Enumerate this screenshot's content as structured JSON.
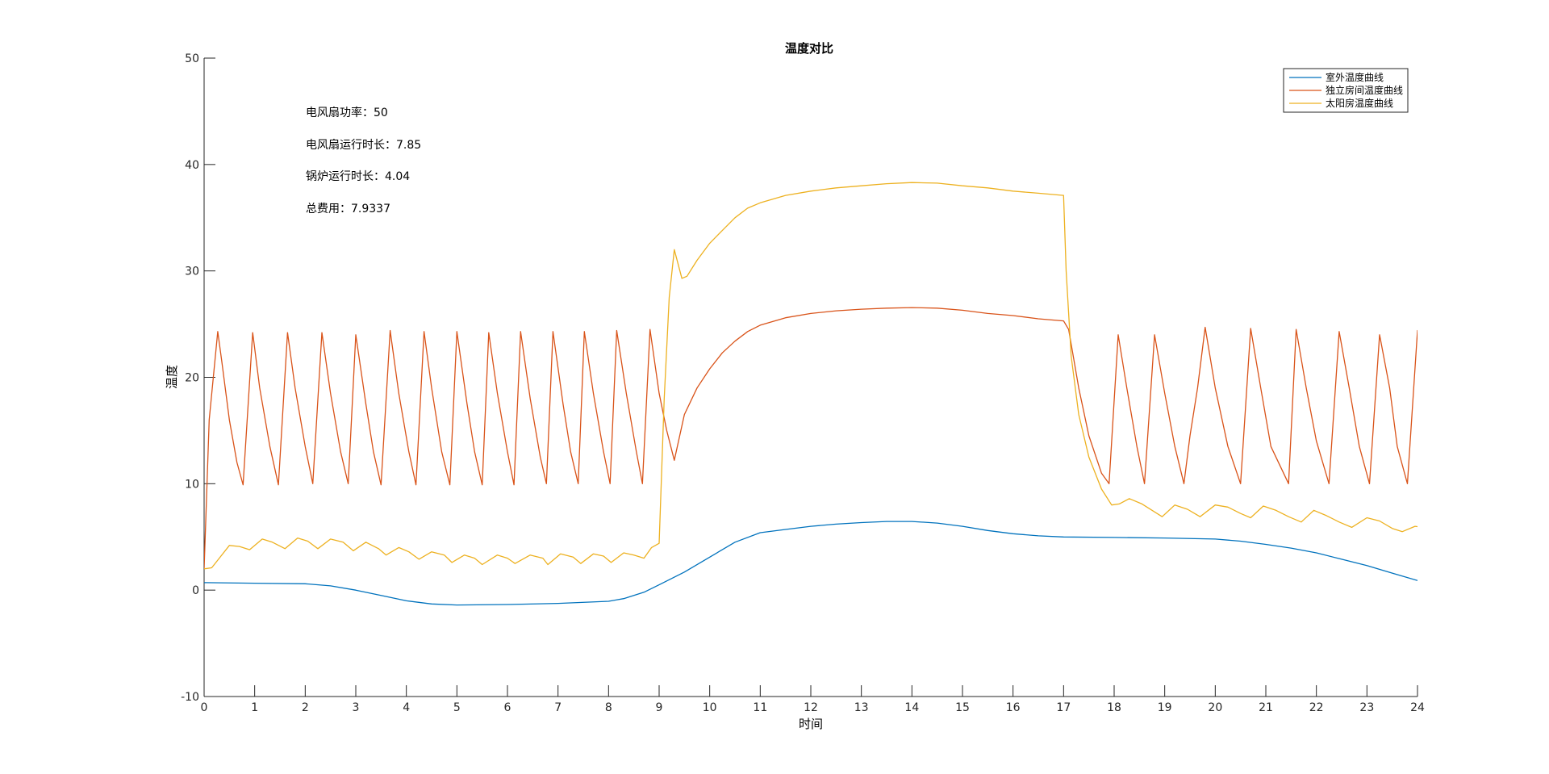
{
  "chart_data": {
    "type": "line",
    "title": "温度对比",
    "xlabel": "时间",
    "ylabel": "温度",
    "xlim": [
      0,
      24
    ],
    "ylim": [
      -10,
      50
    ],
    "xticks": [
      0,
      1,
      2,
      3,
      4,
      5,
      6,
      7,
      8,
      9,
      10,
      11,
      12,
      13,
      14,
      15,
      16,
      17,
      18,
      19,
      20,
      21,
      22,
      23,
      24
    ],
    "yticks": [
      -10,
      0,
      10,
      20,
      30,
      40,
      50
    ],
    "grid": false,
    "legend_position": "top-right",
    "annotations": [
      "电风扇功率：50",
      "电风扇运行时长：7.85",
      "锅炉运行时长：4.04",
      "总费用：7.9337"
    ],
    "series": [
      {
        "name": "室外温度曲线",
        "color": "#0072BD",
        "points": [
          [
            0,
            0.7
          ],
          [
            1,
            0.65
          ],
          [
            2,
            0.6
          ],
          [
            2.5,
            0.4
          ],
          [
            3,
            0
          ],
          [
            3.5,
            -0.5
          ],
          [
            4,
            -1.0
          ],
          [
            4.5,
            -1.3
          ],
          [
            5,
            -1.4
          ],
          [
            6,
            -1.35
          ],
          [
            7,
            -1.25
          ],
          [
            8,
            -1.05
          ],
          [
            8.3,
            -0.8
          ],
          [
            8.7,
            -0.2
          ],
          [
            9,
            0.5
          ],
          [
            9.5,
            1.7
          ],
          [
            10,
            3.1
          ],
          [
            10.5,
            4.5
          ],
          [
            11,
            5.4
          ],
          [
            11.5,
            5.7
          ],
          [
            12,
            6.0
          ],
          [
            12.5,
            6.2
          ],
          [
            13,
            6.35
          ],
          [
            13.5,
            6.45
          ],
          [
            14,
            6.45
          ],
          [
            14.5,
            6.3
          ],
          [
            15,
            6.0
          ],
          [
            15.5,
            5.6
          ],
          [
            16,
            5.3
          ],
          [
            16.5,
            5.1
          ],
          [
            17,
            5.0
          ],
          [
            18,
            4.95
          ],
          [
            19,
            4.9
          ],
          [
            20,
            4.8
          ],
          [
            20.5,
            4.6
          ],
          [
            21,
            4.3
          ],
          [
            21.5,
            3.95
          ],
          [
            22,
            3.5
          ],
          [
            22.5,
            2.9
          ],
          [
            23,
            2.3
          ],
          [
            23.5,
            1.6
          ],
          [
            24,
            0.9
          ]
        ]
      },
      {
        "name": "独立房间温度曲线",
        "color": "#D95319",
        "points": [
          [
            0,
            2
          ],
          [
            0.1,
            16
          ],
          [
            0.27,
            24.3
          ],
          [
            0.35,
            21.5
          ],
          [
            0.5,
            16
          ],
          [
            0.65,
            12
          ],
          [
            0.77,
            9.9
          ],
          [
            0.96,
            24.2
          ],
          [
            1.1,
            19
          ],
          [
            1.3,
            13.5
          ],
          [
            1.47,
            9.9
          ],
          [
            1.65,
            24.2
          ],
          [
            1.8,
            19
          ],
          [
            2,
            13.5
          ],
          [
            2.15,
            10
          ],
          [
            2.33,
            24.2
          ],
          [
            2.5,
            18.5
          ],
          [
            2.7,
            13
          ],
          [
            2.85,
            10
          ],
          [
            3.0,
            24.0
          ],
          [
            3.2,
            17.5
          ],
          [
            3.35,
            13
          ],
          [
            3.5,
            9.9
          ],
          [
            3.68,
            24.4
          ],
          [
            3.85,
            18.5
          ],
          [
            4.05,
            13
          ],
          [
            4.19,
            9.9
          ],
          [
            4.35,
            24.3
          ],
          [
            4.5,
            19
          ],
          [
            4.7,
            13
          ],
          [
            4.86,
            9.9
          ],
          [
            5.0,
            24.3
          ],
          [
            5.2,
            17.5
          ],
          [
            5.35,
            13
          ],
          [
            5.5,
            9.9
          ],
          [
            5.63,
            24.2
          ],
          [
            5.8,
            18.5
          ],
          [
            6.0,
            13
          ],
          [
            6.13,
            9.9
          ],
          [
            6.26,
            24.3
          ],
          [
            6.45,
            18
          ],
          [
            6.65,
            12.5
          ],
          [
            6.77,
            10
          ],
          [
            6.9,
            24.3
          ],
          [
            7.1,
            17.5
          ],
          [
            7.25,
            13
          ],
          [
            7.4,
            10
          ],
          [
            7.52,
            24.3
          ],
          [
            7.7,
            18.5
          ],
          [
            7.9,
            13
          ],
          [
            8.03,
            10
          ],
          [
            8.16,
            24.4
          ],
          [
            8.35,
            18.5
          ],
          [
            8.55,
            13
          ],
          [
            8.67,
            10
          ],
          [
            8.82,
            24.5
          ],
          [
            9.0,
            18.5
          ],
          [
            9.15,
            15
          ],
          [
            9.3,
            12.2
          ],
          [
            9.5,
            16.5
          ],
          [
            9.75,
            19
          ],
          [
            10.0,
            20.8
          ],
          [
            10.25,
            22.3
          ],
          [
            10.5,
            23.4
          ],
          [
            10.75,
            24.3
          ],
          [
            11.0,
            24.9
          ],
          [
            11.5,
            25.6
          ],
          [
            12,
            26.0
          ],
          [
            12.5,
            26.25
          ],
          [
            13,
            26.4
          ],
          [
            13.5,
            26.5
          ],
          [
            14,
            26.55
          ],
          [
            14.5,
            26.5
          ],
          [
            15,
            26.3
          ],
          [
            15.5,
            26.0
          ],
          [
            16,
            25.8
          ],
          [
            16.5,
            25.5
          ],
          [
            17,
            25.3
          ],
          [
            17.1,
            24.5
          ],
          [
            17.3,
            19
          ],
          [
            17.5,
            14.5
          ],
          [
            17.75,
            11
          ],
          [
            17.9,
            10
          ],
          [
            18.08,
            24.0
          ],
          [
            18.25,
            19
          ],
          [
            18.45,
            13.5
          ],
          [
            18.6,
            10
          ],
          [
            18.8,
            24.0
          ],
          [
            19.0,
            18.5
          ],
          [
            19.2,
            13.5
          ],
          [
            19.38,
            10
          ],
          [
            19.5,
            14.5
          ],
          [
            19.65,
            19
          ],
          [
            19.8,
            24.7
          ],
          [
            20.0,
            19
          ],
          [
            20.25,
            13.5
          ],
          [
            20.5,
            10
          ],
          [
            20.7,
            24.6
          ],
          [
            20.9,
            19
          ],
          [
            21.1,
            13.5
          ],
          [
            21.45,
            10
          ],
          [
            21.6,
            24.5
          ],
          [
            21.8,
            19
          ],
          [
            22.0,
            14
          ],
          [
            22.25,
            10
          ],
          [
            22.45,
            24.3
          ],
          [
            22.65,
            19
          ],
          [
            22.85,
            13.5
          ],
          [
            23.05,
            10
          ],
          [
            23.25,
            24.0
          ],
          [
            23.45,
            19
          ],
          [
            23.6,
            13.5
          ],
          [
            23.8,
            10
          ],
          [
            24.0,
            24.4
          ],
          [
            24.05,
            21.2
          ]
        ]
      },
      {
        "name": "太阳房温度曲线",
        "color": "#EDB120",
        "points": [
          [
            0,
            2.0
          ],
          [
            0.15,
            2.1
          ],
          [
            0.3,
            3.0
          ],
          [
            0.5,
            4.2
          ],
          [
            0.7,
            4.1
          ],
          [
            0.9,
            3.8
          ],
          [
            1.15,
            4.8
          ],
          [
            1.35,
            4.5
          ],
          [
            1.6,
            3.9
          ],
          [
            1.85,
            4.9
          ],
          [
            2.05,
            4.6
          ],
          [
            2.25,
            3.9
          ],
          [
            2.5,
            4.8
          ],
          [
            2.75,
            4.5
          ],
          [
            2.95,
            3.7
          ],
          [
            3.2,
            4.5
          ],
          [
            3.45,
            3.9
          ],
          [
            3.6,
            3.3
          ],
          [
            3.85,
            4.0
          ],
          [
            4.05,
            3.6
          ],
          [
            4.25,
            2.9
          ],
          [
            4.5,
            3.6
          ],
          [
            4.75,
            3.3
          ],
          [
            4.9,
            2.6
          ],
          [
            5.15,
            3.3
          ],
          [
            5.35,
            3.0
          ],
          [
            5.5,
            2.4
          ],
          [
            5.8,
            3.3
          ],
          [
            6.0,
            3.0
          ],
          [
            6.15,
            2.5
          ],
          [
            6.45,
            3.3
          ],
          [
            6.7,
            3.0
          ],
          [
            6.8,
            2.4
          ],
          [
            7.05,
            3.4
          ],
          [
            7.3,
            3.1
          ],
          [
            7.45,
            2.5
          ],
          [
            7.7,
            3.4
          ],
          [
            7.9,
            3.2
          ],
          [
            8.05,
            2.6
          ],
          [
            8.3,
            3.5
          ],
          [
            8.5,
            3.3
          ],
          [
            8.7,
            3.0
          ],
          [
            8.85,
            4.0
          ],
          [
            9.0,
            4.4
          ],
          [
            9.1,
            18
          ],
          [
            9.2,
            27.5
          ],
          [
            9.3,
            32.0
          ],
          [
            9.45,
            29.3
          ],
          [
            9.55,
            29.5
          ],
          [
            9.75,
            31.0
          ],
          [
            10,
            32.6
          ],
          [
            10.25,
            33.8
          ],
          [
            10.5,
            35.0
          ],
          [
            10.75,
            35.9
          ],
          [
            11,
            36.4
          ],
          [
            11.5,
            37.1
          ],
          [
            12,
            37.5
          ],
          [
            12.5,
            37.8
          ],
          [
            13,
            38.0
          ],
          [
            13.5,
            38.2
          ],
          [
            14,
            38.3
          ],
          [
            14.5,
            38.25
          ],
          [
            15,
            38.0
          ],
          [
            15.5,
            37.8
          ],
          [
            16,
            37.5
          ],
          [
            16.5,
            37.3
          ],
          [
            17.0,
            37.1
          ],
          [
            17.05,
            30
          ],
          [
            17.15,
            22
          ],
          [
            17.3,
            16.5
          ],
          [
            17.5,
            12.5
          ],
          [
            17.75,
            9.5
          ],
          [
            17.95,
            8.0
          ],
          [
            18.1,
            8.1
          ],
          [
            18.3,
            8.6
          ],
          [
            18.55,
            8.1
          ],
          [
            18.75,
            7.5
          ],
          [
            18.95,
            6.9
          ],
          [
            19.2,
            8.0
          ],
          [
            19.45,
            7.6
          ],
          [
            19.7,
            6.9
          ],
          [
            20.0,
            8.0
          ],
          [
            20.25,
            7.8
          ],
          [
            20.5,
            7.2
          ],
          [
            20.7,
            6.8
          ],
          [
            20.95,
            7.9
          ],
          [
            21.2,
            7.5
          ],
          [
            21.45,
            6.9
          ],
          [
            21.7,
            6.4
          ],
          [
            21.95,
            7.5
          ],
          [
            22.2,
            7.0
          ],
          [
            22.45,
            6.4
          ],
          [
            22.7,
            5.9
          ],
          [
            23.0,
            6.8
          ],
          [
            23.25,
            6.5
          ],
          [
            23.5,
            5.8
          ],
          [
            23.7,
            5.5
          ],
          [
            23.95,
            6.0
          ],
          [
            24.1,
            5.9
          ],
          [
            24.3,
            5.2
          ]
        ]
      }
    ]
  }
}
